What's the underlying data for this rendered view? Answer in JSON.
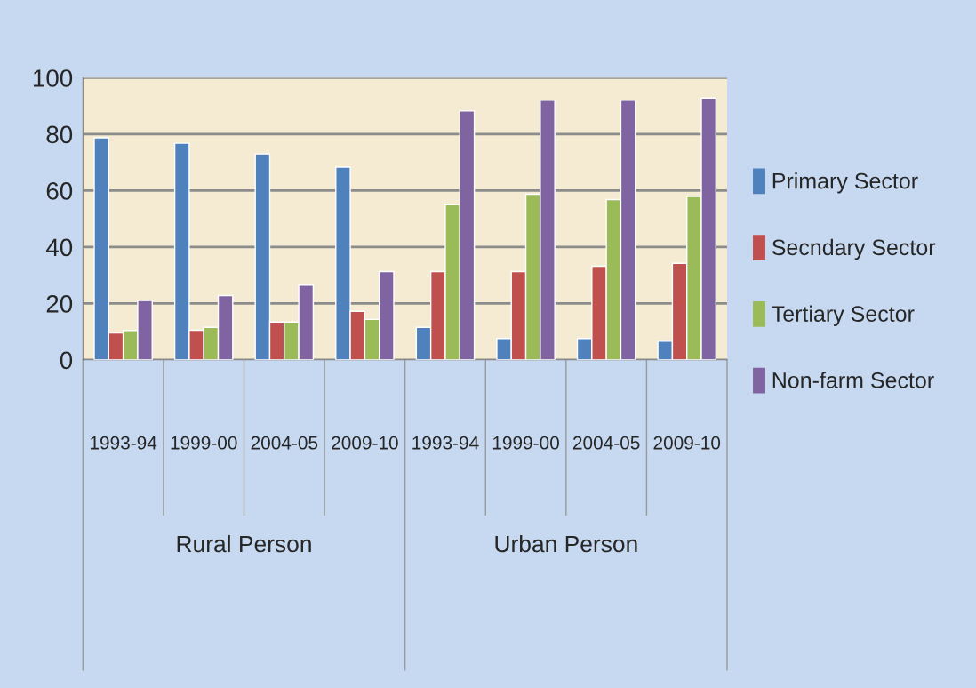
{
  "chart_data": {
    "type": "bar",
    "categories": [
      "1993-94",
      "1999-00",
      "2004-05",
      "2009-10",
      "1993-94",
      "1999-00",
      "2004-05",
      "2009-10"
    ],
    "series": [
      {
        "name": "Primary Sector",
        "color": "#4f81bd",
        "values": [
          78.7,
          76.8,
          73,
          68.3,
          11.5,
          7.6,
          7.6,
          6.6
        ]
      },
      {
        "name": "Secndary Sector",
        "color": "#c0504d",
        "values": [
          9.5,
          10.5,
          13.4,
          17.2,
          31.3,
          31.3,
          33.2,
          34.2
        ]
      },
      {
        "name": "Tertiary Sector",
        "color": "#9bbb59",
        "values": [
          10.4,
          11.5,
          13.4,
          14.3,
          55,
          58.7,
          56.8,
          57.9
        ]
      },
      {
        "name": "Non-farm Sector",
        "color": "#8064a2",
        "values": [
          21,
          22.8,
          26.5,
          31.3,
          88.2,
          92,
          92,
          92.8
        ]
      }
    ],
    "annotations": [
      "Rural Person",
      "Urban Person"
    ],
    "ylim": [
      0,
      100
    ],
    "yticks": [
      0,
      20,
      40,
      60,
      80,
      100
    ],
    "grid": "y",
    "legend": "right"
  }
}
